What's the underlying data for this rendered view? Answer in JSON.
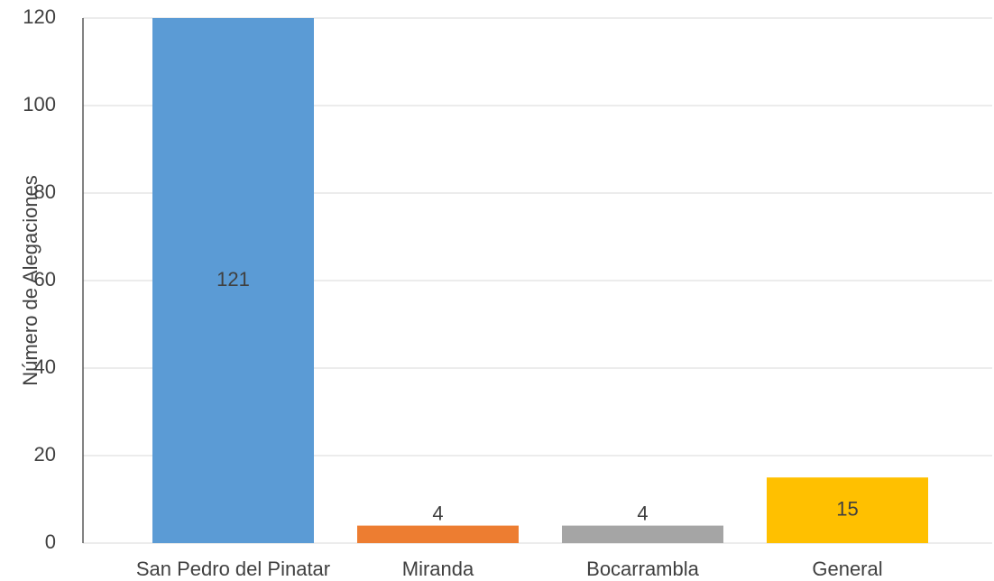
{
  "chart_data": {
    "type": "bar",
    "y_axis_label": "Número de Alegaciones",
    "categories": [
      "San Pedro del Pinatar",
      "Miranda",
      "Bocarrambla",
      "General"
    ],
    "values": [
      121,
      4,
      4,
      15
    ],
    "colors": [
      "#5b9bd5",
      "#ed7d31",
      "#a5a5a5",
      "#ffc000"
    ],
    "ylim": [
      0,
      120
    ],
    "yticks": [
      0,
      20,
      40,
      60,
      80,
      100,
      120
    ],
    "grid": true
  }
}
